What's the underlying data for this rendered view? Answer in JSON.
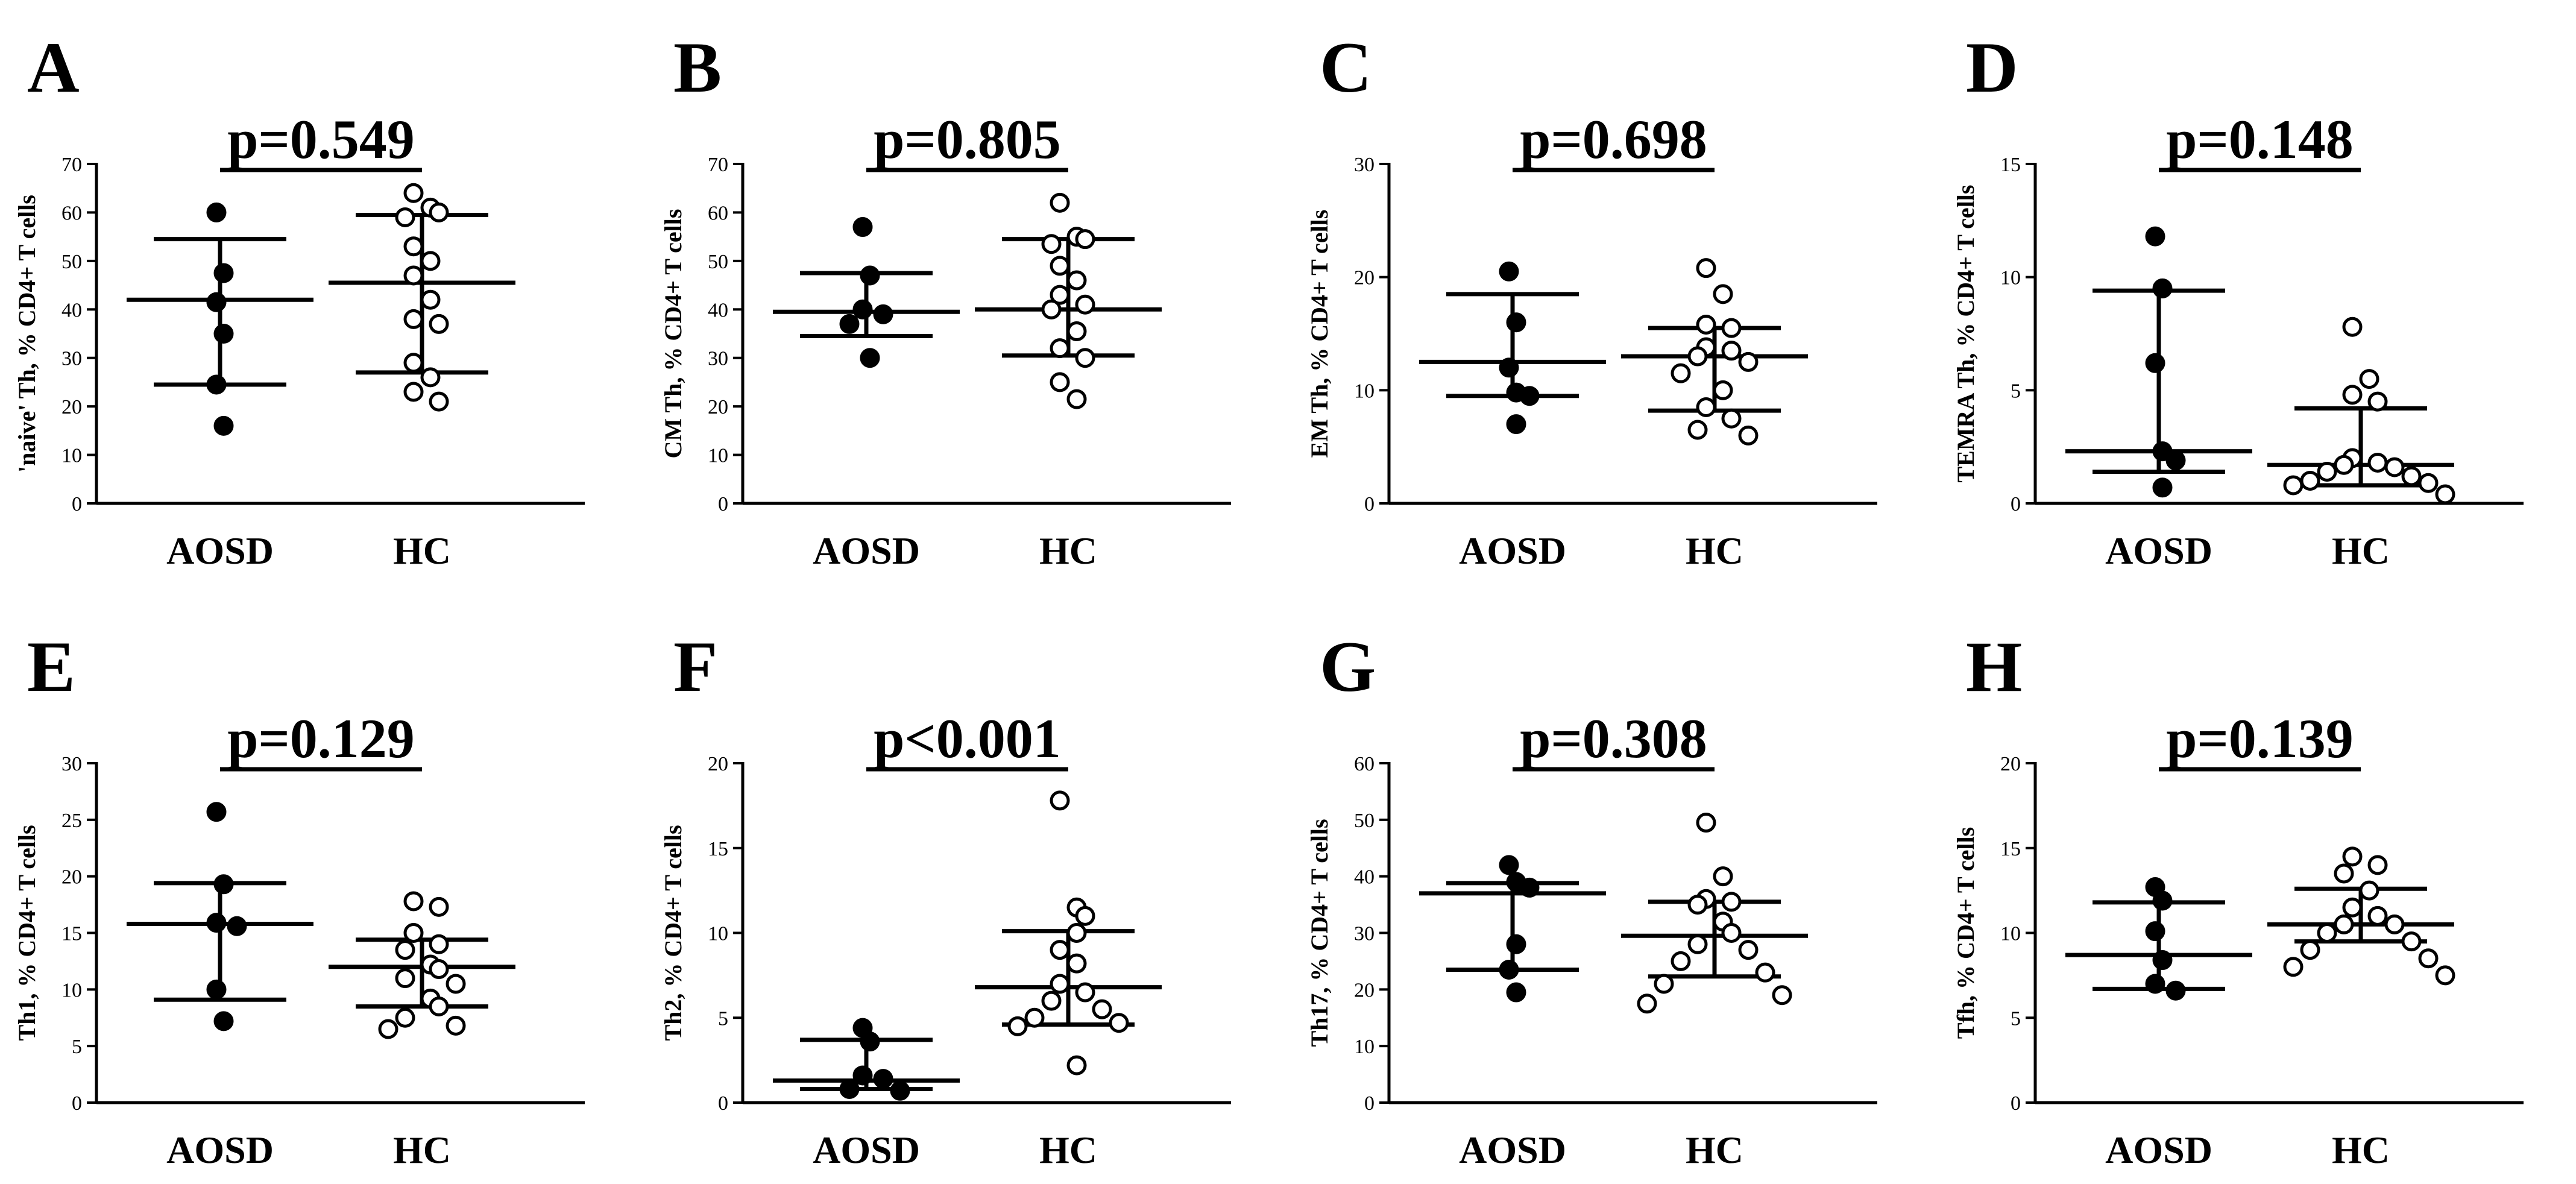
{
  "colors": {
    "ink": "#000000",
    "background": "#ffffff"
  },
  "chart_data": [
    {
      "type": "scatter",
      "panel": "A",
      "ylabel": "'naive' Th, % CD4+ T cells",
      "pvalue": "p=0.549",
      "ylim": [
        0,
        70
      ],
      "yticks": [
        0,
        10,
        20,
        30,
        40,
        50,
        60,
        70
      ],
      "categories": [
        "AOSD",
        "HC"
      ],
      "groups": [
        {
          "name": "AOSD",
          "filled": true,
          "values": [
            60,
            47.5,
            41.5,
            35,
            24.5,
            16
          ],
          "median": 42,
          "q1": 24.5,
          "q3": 54.5
        },
        {
          "name": "HC",
          "filled": false,
          "values": [
            64,
            61,
            60,
            59,
            53,
            50,
            47,
            42,
            38,
            37,
            29,
            26,
            23,
            21
          ],
          "median": 45.5,
          "q1": 27,
          "q3": 59.5
        }
      ]
    },
    {
      "type": "scatter",
      "panel": "B",
      "ylabel": "CM Th, % CD4+ T cells",
      "pvalue": "p=0.805",
      "ylim": [
        0,
        70
      ],
      "yticks": [
        0,
        10,
        20,
        30,
        40,
        50,
        60,
        70
      ],
      "categories": [
        "AOSD",
        "HC"
      ],
      "groups": [
        {
          "name": "AOSD",
          "filled": true,
          "values": [
            57,
            47,
            40,
            39,
            37,
            30
          ],
          "median": 39.5,
          "q1": 34.5,
          "q3": 47.5
        },
        {
          "name": "HC",
          "filled": false,
          "values": [
            62,
            55,
            54.5,
            53.5,
            49,
            46,
            43,
            41,
            40,
            35.5,
            32,
            30,
            25,
            21.5
          ],
          "median": 40,
          "q1": 30.5,
          "q3": 54.5
        }
      ]
    },
    {
      "type": "scatter",
      "panel": "C",
      "ylabel": "EM Th, % CD4+ T cells",
      "pvalue": "p=0.698",
      "ylim": [
        0,
        30
      ],
      "yticks": [
        0,
        10,
        20,
        30
      ],
      "categories": [
        "AOSD",
        "HC"
      ],
      "groups": [
        {
          "name": "AOSD",
          "filled": true,
          "values": [
            20.5,
            16,
            12,
            9.8,
            9.5,
            7
          ],
          "median": 12.5,
          "q1": 9.5,
          "q3": 18.5
        },
        {
          "name": "HC",
          "filled": false,
          "values": [
            20.8,
            18.5,
            15.8,
            15.5,
            13.8,
            13.5,
            13,
            12.5,
            11.5,
            10,
            8.5,
            7.5,
            6.5,
            6
          ],
          "median": 13,
          "q1": 8.2,
          "q3": 15.5
        }
      ]
    },
    {
      "type": "scatter",
      "panel": "D",
      "ylabel": "TEMRA Th, % CD4+ T cells",
      "pvalue": "p=0.148",
      "ylim": [
        0,
        15
      ],
      "yticks": [
        0,
        5,
        10,
        15
      ],
      "categories": [
        "AOSD",
        "HC"
      ],
      "groups": [
        {
          "name": "AOSD",
          "filled": true,
          "values": [
            11.8,
            9.5,
            6.2,
            2.3,
            1.9,
            0.7
          ],
          "median": 2.3,
          "q1": 1.4,
          "q3": 9.4
        },
        {
          "name": "HC",
          "filled": false,
          "values": [
            7.8,
            5.5,
            4.8,
            4.5,
            2,
            1.8,
            1.7,
            1.6,
            1.4,
            1.2,
            1,
            0.9,
            0.8,
            0.4
          ],
          "median": 1.7,
          "q1": 0.8,
          "q3": 4.2
        }
      ]
    },
    {
      "type": "scatter",
      "panel": "E",
      "ylabel": "Th1, % CD4+ T cells",
      "pvalue": "p=0.129",
      "ylim": [
        0,
        30
      ],
      "yticks": [
        0,
        5,
        10,
        15,
        20,
        25,
        30
      ],
      "categories": [
        "AOSD",
        "HC"
      ],
      "groups": [
        {
          "name": "AOSD",
          "filled": true,
          "values": [
            25.7,
            19.3,
            15.9,
            15.6,
            10,
            7.2
          ],
          "median": 15.8,
          "q1": 9.1,
          "q3": 19.4
        },
        {
          "name": "HC",
          "filled": false,
          "values": [
            17.8,
            17.3,
            15,
            14,
            13.5,
            12.2,
            11.8,
            11,
            10.5,
            9.2,
            8.5,
            7.5,
            6.8,
            6.5
          ],
          "median": 12,
          "q1": 8.5,
          "q3": 14.4
        }
      ]
    },
    {
      "type": "scatter",
      "panel": "F",
      "ylabel": "Th2, % CD4+ T cells",
      "pvalue": "p<0.001",
      "ylim": [
        0,
        20
      ],
      "yticks": [
        0,
        5,
        10,
        15,
        20
      ],
      "categories": [
        "AOSD",
        "HC"
      ],
      "groups": [
        {
          "name": "AOSD",
          "filled": true,
          "values": [
            4.4,
            3.6,
            1.6,
            1.4,
            0.8,
            0.7
          ],
          "median": 1.3,
          "q1": 0.8,
          "q3": 3.7
        },
        {
          "name": "HC",
          "filled": false,
          "values": [
            17.8,
            11.5,
            11,
            10,
            9,
            8.2,
            7,
            6.5,
            6,
            5.5,
            5,
            4.7,
            4.5,
            2.2
          ],
          "median": 6.8,
          "q1": 4.6,
          "q3": 10.1
        }
      ]
    },
    {
      "type": "scatter",
      "panel": "G",
      "ylabel": "Th17, % CD4+ T cells",
      "pvalue": "p=0.308",
      "ylim": [
        0,
        60
      ],
      "yticks": [
        0,
        10,
        20,
        30,
        40,
        50,
        60
      ],
      "categories": [
        "AOSD",
        "HC"
      ],
      "groups": [
        {
          "name": "AOSD",
          "filled": true,
          "values": [
            42,
            39,
            38,
            28,
            23.5,
            19.5
          ],
          "median": 37,
          "q1": 23.5,
          "q3": 38.8
        },
        {
          "name": "HC",
          "filled": false,
          "values": [
            49.5,
            40,
            36,
            35.5,
            35,
            32,
            30,
            28,
            27,
            25,
            23,
            21,
            19,
            17.5
          ],
          "median": 29.5,
          "q1": 22.3,
          "q3": 35.5
        }
      ]
    },
    {
      "type": "scatter",
      "panel": "H",
      "ylabel": "Tfh, % CD4+ T cells",
      "pvalue": "p=0.139",
      "ylim": [
        0,
        20
      ],
      "yticks": [
        0,
        5,
        10,
        15,
        20
      ],
      "categories": [
        "AOSD",
        "HC"
      ],
      "groups": [
        {
          "name": "AOSD",
          "filled": true,
          "values": [
            12.7,
            11.9,
            10.1,
            8.4,
            7,
            6.6
          ],
          "median": 8.7,
          "q1": 6.7,
          "q3": 11.8
        },
        {
          "name": "HC",
          "filled": false,
          "values": [
            14.5,
            14,
            13.5,
            12.5,
            11.5,
            11,
            10.5,
            10.5,
            10,
            9.5,
            9,
            8.5,
            8,
            7.5
          ],
          "median": 10.5,
          "q1": 9.5,
          "q3": 12.6
        }
      ]
    }
  ]
}
